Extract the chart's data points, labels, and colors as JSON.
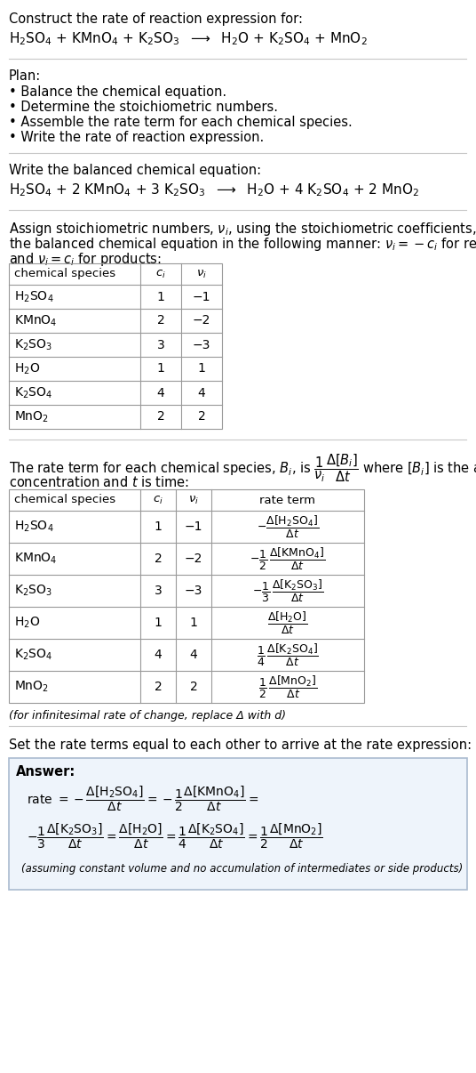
{
  "bg_color": "#ffffff",
  "text_color": "#000000",
  "title_line1": "Construct the rate of reaction expression for:",
  "plan_header": "Plan:",
  "plan_items": [
    "• Balance the chemical equation.",
    "• Determine the stoichiometric numbers.",
    "• Assemble the rate term for each chemical species.",
    "• Write the rate of reaction expression."
  ],
  "balanced_header": "Write the balanced chemical equation:",
  "table1_cols": [
    "chemical species",
    "c_i",
    "ν_i"
  ],
  "table1_data": [
    [
      "H_2SO_4",
      "1",
      "−1"
    ],
    [
      "KMnO_4",
      "2",
      "−2"
    ],
    [
      "K_2SO_3",
      "3",
      "−3"
    ],
    [
      "H_2O",
      "1",
      "1"
    ],
    [
      "K_2SO_4",
      "4",
      "4"
    ],
    [
      "MnO_2",
      "2",
      "2"
    ]
  ],
  "table2_cols": [
    "chemical species",
    "c_i",
    "ν_i",
    "rate term"
  ],
  "table2_data": [
    [
      "H_2SO_4",
      "1",
      "−1"
    ],
    [
      "KMnO_4",
      "2",
      "−2"
    ],
    [
      "K_2SO_3",
      "3",
      "−3"
    ],
    [
      "H_2O",
      "1",
      "1"
    ],
    [
      "K_2SO_4",
      "4",
      "4"
    ],
    [
      "MnO_2",
      "2",
      "2"
    ]
  ],
  "infinitesimal_note": "(for infinitesimal rate of change, replace Δ with d)",
  "rate_eq_header": "Set the rate terms equal to each other to arrive at the rate expression:",
  "answer_box_bg": "#eef4fb",
  "answer_box_border": "#aabbd0",
  "answer_label": "Answer:",
  "assuming_note": "(assuming constant volume and no accumulation of intermediates or side products)"
}
